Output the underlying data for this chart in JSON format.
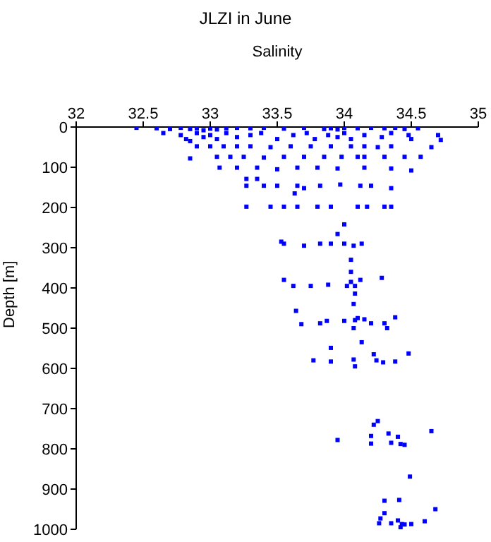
{
  "chart_data": {
    "type": "scatter",
    "title": "JLZI in June",
    "xlabel": "Salinity",
    "ylabel": "Depth [m]",
    "xlim": [
      32,
      35
    ],
    "xticks": [
      32,
      32.5,
      33,
      33.5,
      34,
      34.5,
      35
    ],
    "ylim": [
      1000,
      0
    ],
    "yticks": [
      0,
      100,
      200,
      300,
      400,
      500,
      600,
      700,
      800,
      900,
      1000
    ],
    "grid": false,
    "legend": false,
    "marker": "square",
    "series": [
      {
        "color": "#0000ff",
        "x": [
          32.45,
          32.6,
          32.7,
          32.78,
          32.85,
          32.9,
          32.95,
          33.0,
          33.05,
          33.12,
          33.2,
          33.3,
          33.4,
          33.55,
          33.7,
          33.85,
          33.9,
          33.95,
          34.0,
          34.1,
          34.2,
          34.3,
          34.38,
          34.45,
          34.55,
          32.65,
          32.78,
          32.82,
          32.9,
          32.95,
          33.0,
          33.05,
          33.12,
          33.2,
          33.3,
          33.38,
          33.5,
          33.62,
          33.72,
          33.78,
          33.88,
          33.95,
          34.0,
          34.05,
          34.15,
          34.28,
          34.35,
          34.48,
          34.5,
          34.7,
          34.72,
          32.85,
          32.9,
          33.0,
          33.1,
          33.2,
          33.3,
          33.45,
          33.6,
          33.75,
          33.9,
          34.05,
          34.15,
          34.25,
          34.35,
          34.65,
          32.85,
          33.05,
          33.15,
          33.25,
          33.4,
          33.55,
          33.7,
          33.85,
          33.98,
          34.1,
          34.15,
          34.3,
          34.45,
          34.57,
          33.07,
          33.2,
          33.35,
          33.5,
          33.65,
          33.8,
          33.95,
          34.15,
          34.35,
          34.5,
          33.27,
          33.35,
          33.27,
          33.4,
          33.5,
          33.65,
          33.7,
          33.82,
          33.97,
          34.12,
          34.2,
          34.35,
          33.63,
          33.27,
          33.45,
          33.55,
          33.65,
          33.8,
          33.9,
          34.1,
          34.17,
          34.3,
          34.35,
          34.0,
          33.95,
          33.55,
          33.53,
          33.7,
          33.82,
          33.9,
          34.07,
          34.13,
          34.0,
          34.05,
          34.05,
          33.55,
          34.28,
          34.12,
          34.05,
          34.08,
          33.62,
          33.75,
          33.88,
          34.02,
          34.07,
          34.08,
          33.64,
          33.68,
          33.82,
          33.87,
          34.0,
          34.08,
          34.1,
          34.15,
          34.2,
          34.38,
          34.3,
          34.32,
          34.07,
          34.13,
          33.9,
          33.77,
          33.9,
          34.07,
          34.08,
          34.22,
          34.24,
          34.29,
          34.38,
          34.48,
          34.25,
          34.22,
          34.33,
          34.65,
          33.95,
          34.2,
          34.2,
          34.35,
          34.4,
          34.42,
          34.45,
          34.49,
          34.3,
          34.41,
          34.3,
          34.35,
          34.4,
          34.43,
          34.45,
          34.5,
          34.42,
          34.6,
          34.68,
          34.26,
          34.27
        ],
        "values": [
          2,
          3,
          5,
          2,
          5,
          3,
          8,
          4,
          6,
          3,
          2,
          3,
          2,
          4,
          2,
          5,
          3,
          6,
          2,
          3,
          2,
          3,
          2,
          5,
          3,
          15,
          20,
          30,
          15,
          25,
          20,
          30,
          15,
          25,
          20,
          15,
          30,
          20,
          15,
          30,
          20,
          25,
          15,
          30,
          20,
          25,
          15,
          20,
          30,
          20,
          32,
          35,
          48,
          48,
          48,
          48,
          48,
          50,
          48,
          48,
          48,
          48,
          48,
          50,
          48,
          50,
          78,
          74,
          74,
          74,
          76,
          74,
          74,
          74,
          74,
          74,
          74,
          74,
          74,
          74,
          101,
          101,
          101,
          105,
          101,
          101,
          103,
          101,
          103,
          108,
          129,
          129,
          146,
          146,
          146,
          146,
          152,
          146,
          143,
          146,
          146,
          152,
          165,
          198,
          198,
          198,
          198,
          198,
          198,
          198,
          198,
          198,
          198,
          242,
          266,
          290,
          285,
          295,
          290,
          290,
          295,
          290,
          290,
          330,
          360,
          380,
          375,
          380,
          385,
          395,
          395,
          395,
          392,
          395,
          440,
          414,
          457,
          490,
          488,
          482,
          482,
          480,
          475,
          478,
          488,
          473,
          488,
          500,
          500,
          535,
          549,
          580,
          583,
          578,
          595,
          565,
          580,
          585,
          583,
          563,
          731,
          740,
          762,
          756,
          778,
          768,
          787,
          785,
          770,
          788,
          790,
          869,
          929,
          927,
          960,
          985,
          978,
          987,
          988,
          987,
          995,
          980,
          950,
          985,
          973
        ]
      }
    ]
  }
}
